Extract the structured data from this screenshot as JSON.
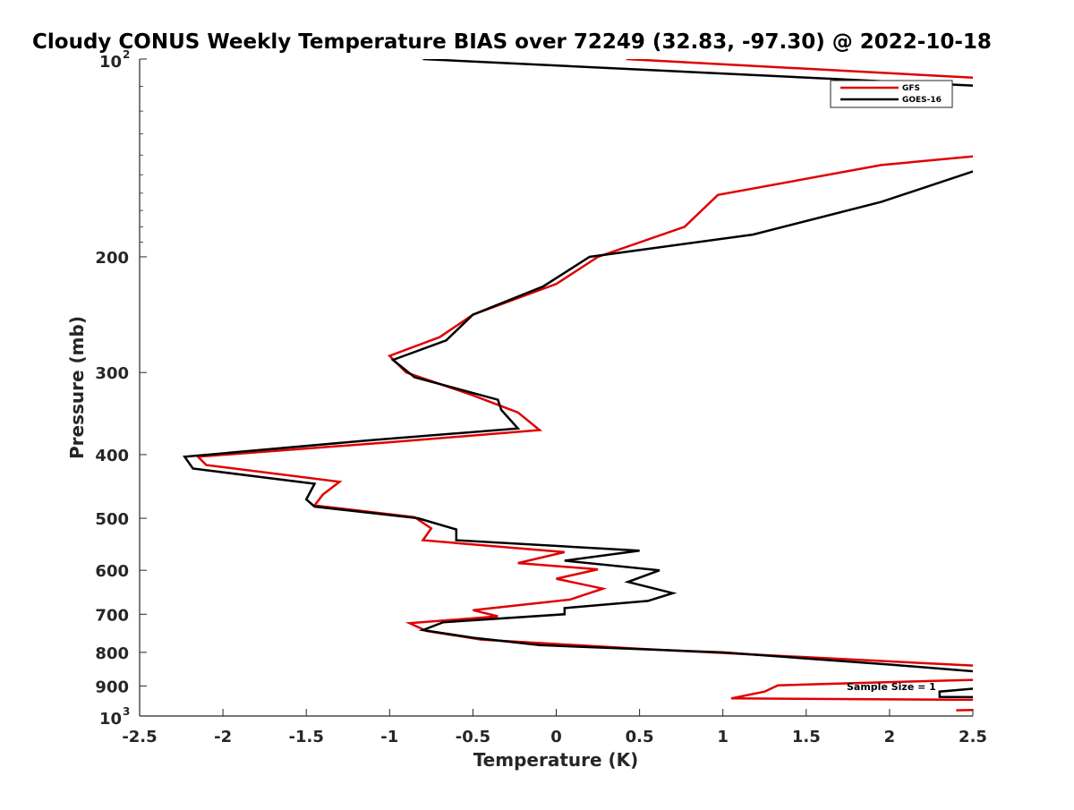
{
  "chart_data": {
    "type": "line",
    "title": "Cloudy CONUS Weekly Temperature BIAS over 72249 (32.83, -97.30) @ 2022-10-18",
    "xlabel": "Temperature (K)",
    "ylabel": "Pressure (mb)",
    "xlim": [
      -2.5,
      2.5
    ],
    "ylim": [
      1000,
      100
    ],
    "y_scale": "log",
    "y_reversed": true,
    "grid": false,
    "legend_position": "top-right",
    "xticks": [
      -2.5,
      -2,
      -1.5,
      -1,
      -0.5,
      0,
      0.5,
      1,
      1.5,
      2,
      2.5
    ],
    "xtick_labels": [
      "-2.5",
      "-2",
      "-1.5",
      "-1",
      "-0.5",
      "0",
      "0.5",
      "1",
      "1.5",
      "2",
      "2.5"
    ],
    "yticks": [
      {
        "value": 100,
        "base": "10",
        "exp": "2"
      },
      {
        "value": 200,
        "base": "200",
        "exp": ""
      },
      {
        "value": 300,
        "base": "300",
        "exp": ""
      },
      {
        "value": 400,
        "base": "400",
        "exp": ""
      },
      {
        "value": 500,
        "base": "500",
        "exp": ""
      },
      {
        "value": 600,
        "base": "600",
        "exp": ""
      },
      {
        "value": 700,
        "base": "700",
        "exp": ""
      },
      {
        "value": 800,
        "base": "800",
        "exp": ""
      },
      {
        "value": 900,
        "base": "900",
        "exp": ""
      },
      {
        "value": 1000,
        "base": "10",
        "exp": "3"
      }
    ],
    "annotation": "Sample Size = 1",
    "series": [
      {
        "name": "GFS",
        "color": "#e00000",
        "points": [
          [
            0.42,
            100
          ],
          [
            2.58,
            107
          ],
          [
            2.58,
            140
          ],
          [
            1.95,
            145
          ],
          [
            0.97,
            161
          ],
          [
            0.77,
            180
          ],
          [
            0.25,
            200
          ],
          [
            0.0,
            220
          ],
          [
            -0.5,
            245
          ],
          [
            -0.7,
            265
          ],
          [
            -1.0,
            283
          ],
          [
            -0.9,
            300
          ],
          [
            -0.5,
            325
          ],
          [
            -0.23,
            345
          ],
          [
            -0.1,
            367
          ],
          [
            -1.0,
            383
          ],
          [
            -2.15,
            403
          ],
          [
            -2.1,
            415
          ],
          [
            -1.3,
            440
          ],
          [
            -1.4,
            460
          ],
          [
            -1.45,
            478
          ],
          [
            -0.85,
            498
          ],
          [
            -0.75,
            518
          ],
          [
            -0.8,
            540
          ],
          [
            0.05,
            563
          ],
          [
            -0.23,
            585
          ],
          [
            0.25,
            598
          ],
          [
            0.0,
            618
          ],
          [
            0.28,
            640
          ],
          [
            0.08,
            665
          ],
          [
            -0.5,
            690
          ],
          [
            -0.35,
            705
          ],
          [
            -0.88,
            722
          ],
          [
            -0.78,
            742
          ],
          [
            -0.45,
            765
          ],
          [
            0.5,
            790
          ],
          [
            2.58,
            840
          ],
          [
            2.58,
            880
          ],
          [
            2.0,
            888
          ],
          [
            1.33,
            898
          ],
          [
            1.25,
            918
          ],
          [
            1.05,
            940
          ],
          [
            2.58,
            945
          ]
        ],
        "extra_points": [
          [
            2.4,
            980
          ],
          [
            2.58,
            978
          ]
        ]
      },
      {
        "name": "GOES-16",
        "color": "#000000",
        "points": [
          [
            -0.8,
            100
          ],
          [
            2.58,
            110
          ],
          [
            2.58,
            146
          ],
          [
            1.95,
            165
          ],
          [
            1.18,
            185
          ],
          [
            0.2,
            200
          ],
          [
            -0.08,
            222
          ],
          [
            -0.5,
            245
          ],
          [
            -0.66,
            268
          ],
          [
            -0.98,
            287
          ],
          [
            -0.85,
            305
          ],
          [
            -0.35,
            330
          ],
          [
            -0.33,
            342
          ],
          [
            -0.23,
            365
          ],
          [
            -1.1,
            380
          ],
          [
            -2.23,
            403
          ],
          [
            -2.18,
            420
          ],
          [
            -1.45,
            443
          ],
          [
            -1.5,
            468
          ],
          [
            -1.45,
            480
          ],
          [
            -0.83,
            500
          ],
          [
            -0.6,
            520
          ],
          [
            -0.6,
            540
          ],
          [
            0.5,
            560
          ],
          [
            0.05,
            580
          ],
          [
            0.62,
            600
          ],
          [
            0.43,
            625
          ],
          [
            0.7,
            650
          ],
          [
            0.55,
            668
          ],
          [
            0.05,
            685
          ],
          [
            0.05,
            700
          ],
          [
            -0.68,
            720
          ],
          [
            -0.8,
            740
          ],
          [
            -0.5,
            760
          ],
          [
            -0.1,
            780
          ],
          [
            1.0,
            800
          ],
          [
            2.0,
            835
          ],
          [
            2.58,
            858
          ],
          [
            2.58,
            905
          ],
          [
            2.3,
            918
          ],
          [
            2.3,
            935
          ],
          [
            2.58,
            936
          ]
        ]
      }
    ]
  }
}
